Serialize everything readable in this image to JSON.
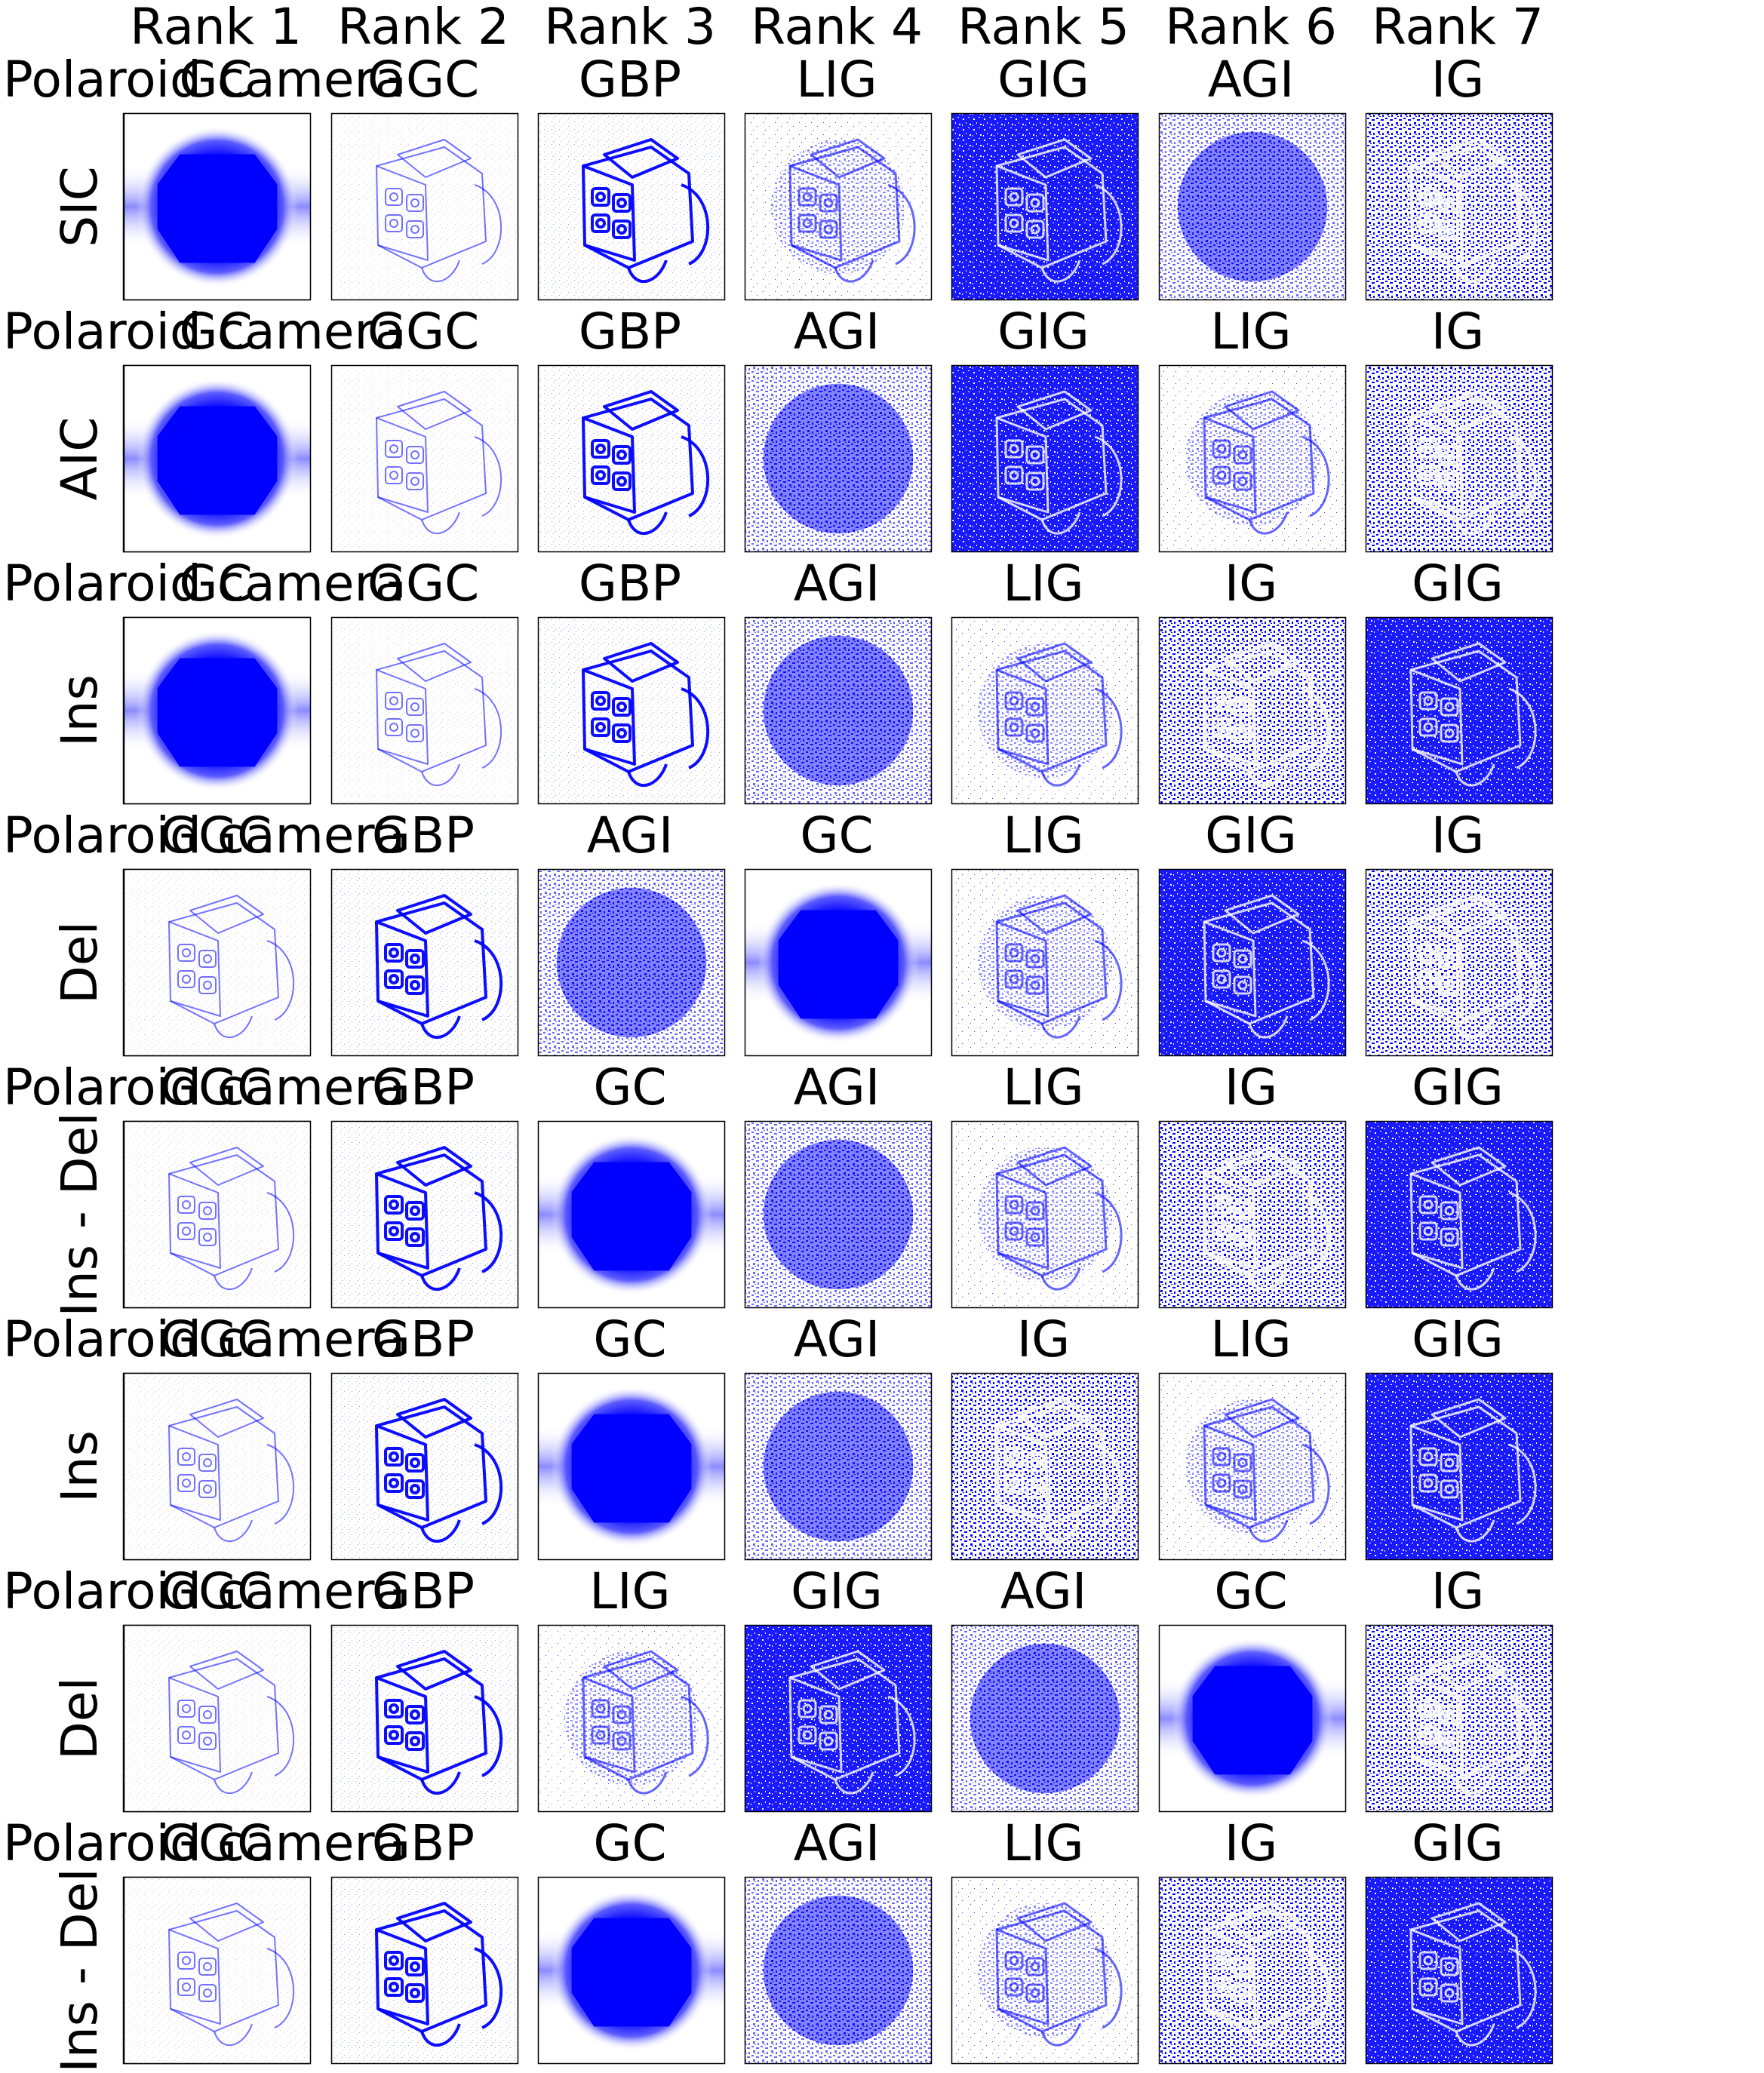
{
  "column_headers": [
    "Rank 1",
    "Rank 2",
    "Rank 3",
    "Rank 4",
    "Rank 5",
    "Rank 6",
    "Rank 7"
  ],
  "rows": [
    {
      "class_label": "Polaroid camera",
      "metric": "SIC",
      "methods": [
        "GC",
        "GGC",
        "GBP",
        "LIG",
        "GIG",
        "AGI",
        "IG"
      ]
    },
    {
      "class_label": "Polaroid camera",
      "metric": "AIC",
      "methods": [
        "GC",
        "GGC",
        "GBP",
        "AGI",
        "GIG",
        "LIG",
        "IG"
      ]
    },
    {
      "class_label": "Polaroid camera",
      "metric": "Ins",
      "methods": [
        "GC",
        "GGC",
        "GBP",
        "AGI",
        "LIG",
        "IG",
        "GIG"
      ]
    },
    {
      "class_label": "Polaroid camera",
      "metric": "Del",
      "methods": [
        "GGC",
        "GBP",
        "AGI",
        "GC",
        "LIG",
        "GIG",
        "IG"
      ]
    },
    {
      "class_label": "Polaroid camera",
      "metric": "Ins - Del",
      "methods": [
        "GGC",
        "GBP",
        "GC",
        "AGI",
        "LIG",
        "IG",
        "GIG"
      ]
    },
    {
      "class_label": "Polaroid camera",
      "metric": "Ins",
      "methods": [
        "GGC",
        "GBP",
        "GC",
        "AGI",
        "IG",
        "LIG",
        "GIG"
      ]
    },
    {
      "class_label": "Polaroid camera",
      "metric": "Del",
      "methods": [
        "GGC",
        "GBP",
        "LIG",
        "GIG",
        "AGI",
        "GC",
        "IG"
      ]
    },
    {
      "class_label": "Polaroid camera",
      "metric": "Ins - Del",
      "methods": [
        "GGC",
        "GBP",
        "GC",
        "AGI",
        "LIG",
        "IG",
        "GIG"
      ]
    }
  ],
  "method_styles": {
    "GC": "blob",
    "GGC": "edges-light",
    "GBP": "edges-dark",
    "LIG": "sparse",
    "GIG": "dense",
    "AGI": "blob-noise",
    "IG": "medium"
  },
  "colors": {
    "saliency": "#0000ff",
    "background": "#ffffff",
    "camera_body": "#1a1a1a",
    "camera_accent": "#2ecc71"
  }
}
